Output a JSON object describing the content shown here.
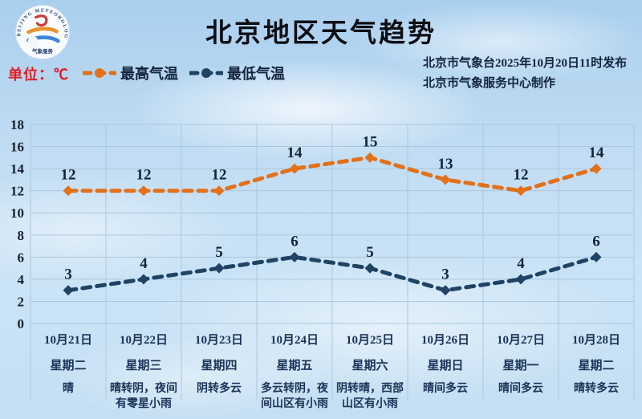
{
  "title": "北京地区天气趋势",
  "unit_label": "单位：℃",
  "legend": {
    "items": [
      {
        "label": "最高气温",
        "color": "#e2711c"
      },
      {
        "label": "最低气温",
        "color": "#1f4265"
      }
    ]
  },
  "source": {
    "line1": "北京市气象台2025年10月20日11时发布",
    "line2": "北京市气象服务中心制作"
  },
  "logo": {
    "arc_text": "BEIJING METEOROLOGICAL SERVICE",
    "bottom_text": "气象服务"
  },
  "colors": {
    "high_series": "#e2711c",
    "low_series": "#1f4265",
    "grid": "#a6c3da",
    "data_label": "#14233c",
    "tick_label": "#18222e",
    "unit_red": "#e21e26",
    "footer_text": "#1c3359"
  },
  "chart_data": {
    "type": "line",
    "title": "北京地区天气趋势",
    "unit": "℃",
    "categories": [
      "10月21日",
      "10月22日",
      "10月23日",
      "10月24日",
      "10月25日",
      "10月26日",
      "10月27日",
      "10月28日"
    ],
    "weekdays": [
      "星期二",
      "星期三",
      "星期四",
      "星期五",
      "星期六",
      "星期日",
      "星期一",
      "星期二"
    ],
    "weather": [
      "晴",
      "晴转阴，夜间有零星小雨",
      "阴转多云",
      "多云转阴，夜间山区有小雨",
      "阴转晴，西部山区有小雨",
      "晴间多云",
      "晴间多云",
      "晴转多云"
    ],
    "series": [
      {
        "name": "最高气温",
        "color": "#e2711c",
        "values": [
          12,
          12,
          12,
          14,
          15,
          13,
          12,
          14
        ]
      },
      {
        "name": "最低气温",
        "color": "#1f4265",
        "values": [
          3,
          4,
          5,
          6,
          5,
          3,
          4,
          6
        ]
      }
    ],
    "ylim": [
      0,
      18
    ],
    "ytick_step": 2,
    "grid": true,
    "line_style": "dashed",
    "legend_position": "top-left"
  }
}
